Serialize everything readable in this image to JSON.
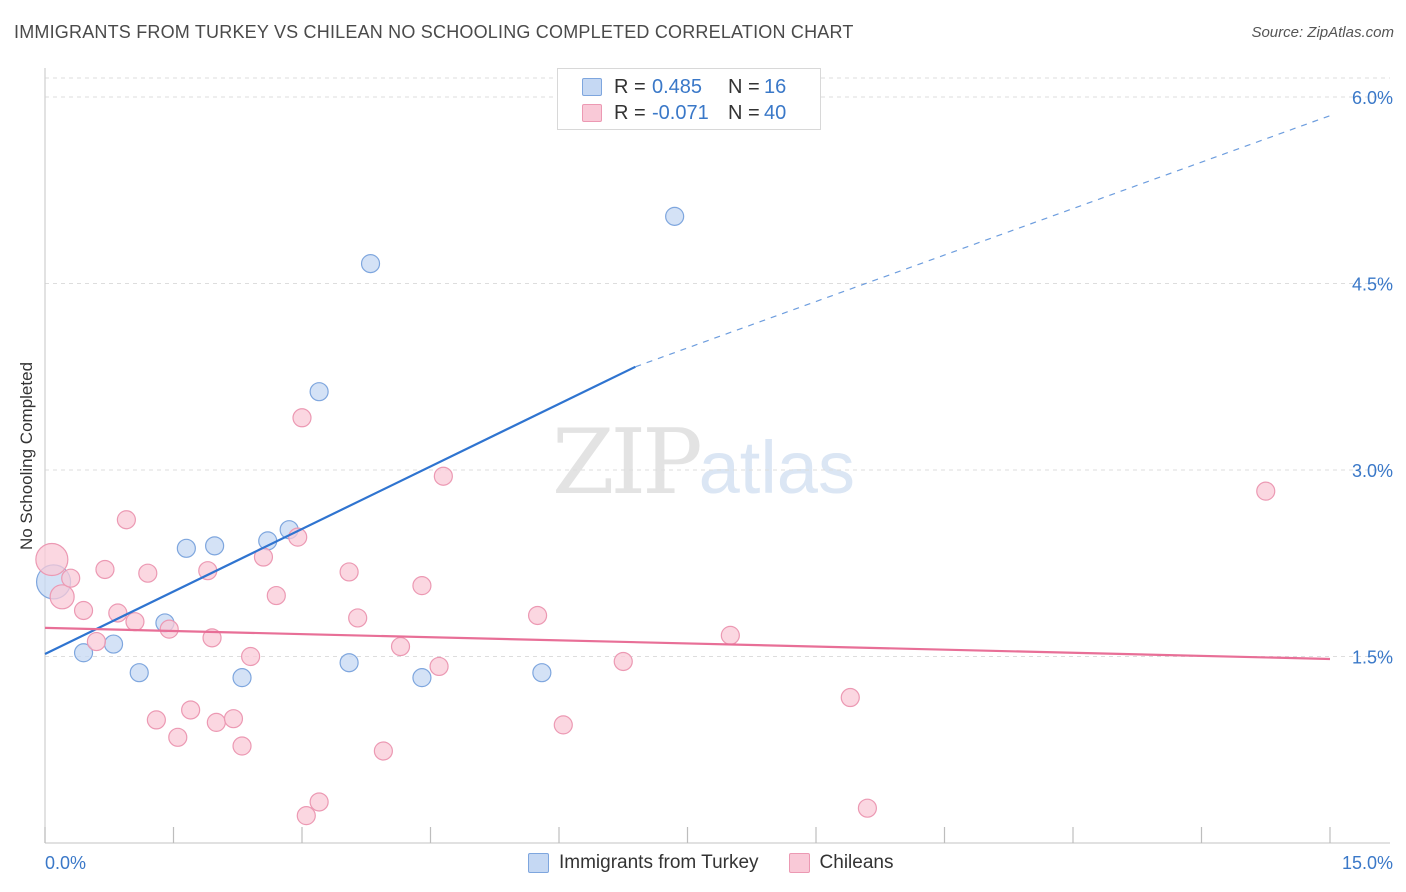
{
  "title": "IMMIGRANTS FROM TURKEY VS CHILEAN NO SCHOOLING COMPLETED CORRELATION CHART",
  "source": "Source: ZipAtlas.com",
  "watermark": {
    "zip": "ZIP",
    "atlas": "atlas"
  },
  "colors": {
    "blue_fill": "#c5d8f3",
    "blue_stroke": "#7ea6de",
    "blue_line": "#2f74d0",
    "pink_fill": "#f9c9d7",
    "pink_stroke": "#ec99b3",
    "pink_line": "#e86f97",
    "tick_text": "#3a78c8",
    "grid": "#dddddd"
  },
  "legend": {
    "rows": [
      {
        "r_label": "R =",
        "r_value": "0.485",
        "n_label": "N =",
        "n_value": "16",
        "color": "blue"
      },
      {
        "r_label": "R =",
        "r_value": "-0.071",
        "n_label": "N =",
        "n_value": "40",
        "color": "pink"
      }
    ]
  },
  "chart_data": {
    "type": "scatter",
    "title": "IMMIGRANTS FROM TURKEY VS CHILEAN NO SCHOOLING COMPLETED CORRELATION CHART",
    "xlabel": "",
    "ylabel": "No Schooling Completed",
    "xlim": [
      0,
      15
    ],
    "ylim": [
      0,
      6.3
    ],
    "x_tick_labels": [
      "0.0%",
      "15.0%"
    ],
    "y_ticks": [
      1.5,
      3.0,
      4.5,
      6.0
    ],
    "y_tick_labels": [
      "1.5%",
      "3.0%",
      "4.5%",
      "6.0%"
    ],
    "grid": true,
    "legend_position": "bottom-center",
    "series": [
      {
        "name": "Immigrants from Turkey",
        "color": "blue",
        "points": [
          [
            0.1,
            2.1
          ],
          [
            0.45,
            1.53
          ],
          [
            0.8,
            1.6
          ],
          [
            1.1,
            1.37
          ],
          [
            1.4,
            1.77
          ],
          [
            1.65,
            2.37
          ],
          [
            1.98,
            2.39
          ],
          [
            2.3,
            1.33
          ],
          [
            2.6,
            2.43
          ],
          [
            2.85,
            2.52
          ],
          [
            3.2,
            3.63
          ],
          [
            3.55,
            1.45
          ],
          [
            3.8,
            4.66
          ],
          [
            4.4,
            1.33
          ],
          [
            5.8,
            1.37
          ],
          [
            7.35,
            5.04
          ]
        ],
        "trend": {
          "x0": 0,
          "y0": 1.52,
          "x1": 8.0,
          "y1": 3.83,
          "dashed_to_x": 15,
          "dashed_to_y": 5.85
        }
      },
      {
        "name": "Chileans",
        "color": "pink",
        "points": [
          [
            0.08,
            2.28
          ],
          [
            0.2,
            1.98
          ],
          [
            0.3,
            2.13
          ],
          [
            0.45,
            1.87
          ],
          [
            0.6,
            1.62
          ],
          [
            0.7,
            2.2
          ],
          [
            0.85,
            1.85
          ],
          [
            0.95,
            2.6
          ],
          [
            1.05,
            1.78
          ],
          [
            1.2,
            2.17
          ],
          [
            1.3,
            0.99
          ],
          [
            1.55,
            0.85
          ],
          [
            1.7,
            1.07
          ],
          [
            1.9,
            2.19
          ],
          [
            1.95,
            1.65
          ],
          [
            2.0,
            0.97
          ],
          [
            2.2,
            1.0
          ],
          [
            2.3,
            0.78
          ],
          [
            2.4,
            1.5
          ],
          [
            2.55,
            2.3
          ],
          [
            2.7,
            1.99
          ],
          [
            2.95,
            2.46
          ],
          [
            3.0,
            3.42
          ],
          [
            3.05,
            0.22
          ],
          [
            3.2,
            0.33
          ],
          [
            3.55,
            2.18
          ],
          [
            3.65,
            1.81
          ],
          [
            3.95,
            0.74
          ],
          [
            4.15,
            1.58
          ],
          [
            4.4,
            2.07
          ],
          [
            4.6,
            1.42
          ],
          [
            4.65,
            2.95
          ],
          [
            5.75,
            1.83
          ],
          [
            6.05,
            0.95
          ],
          [
            6.75,
            1.46
          ],
          [
            8.0,
            1.67
          ],
          [
            9.4,
            1.17
          ],
          [
            9.6,
            0.28
          ],
          [
            14.25,
            2.83
          ],
          [
            1.45,
            1.72
          ]
        ],
        "trend": {
          "x0": 0,
          "y0": 1.73,
          "x1": 15,
          "y1": 1.48
        }
      }
    ]
  }
}
